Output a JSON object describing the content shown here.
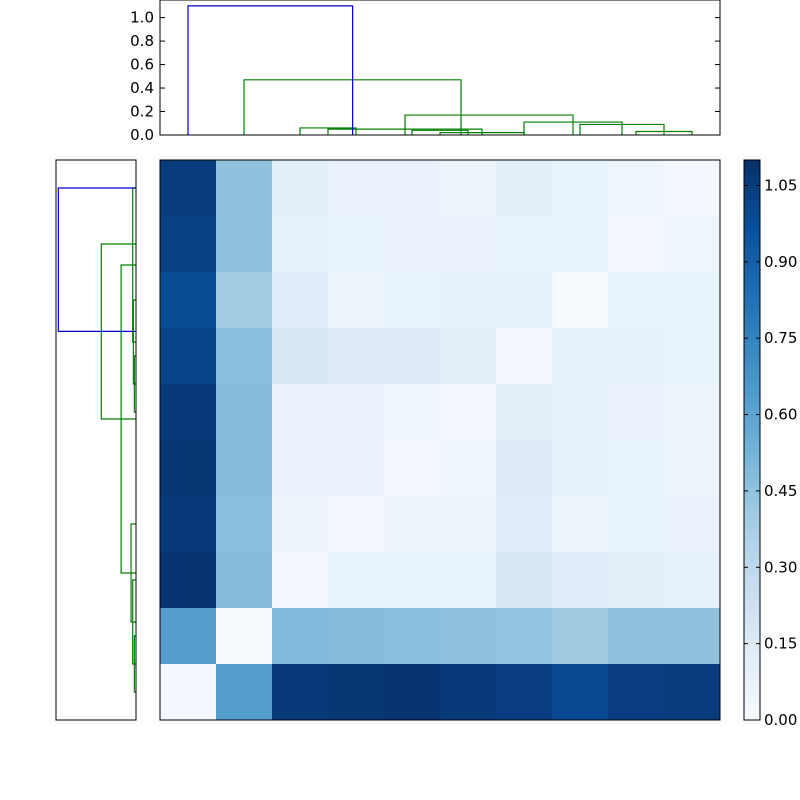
{
  "chart_data": [
    {
      "type": "dendrogram",
      "orientation": "top",
      "ylim": [
        0,
        1.15
      ],
      "yticks": [
        0.0,
        0.2,
        0.4,
        0.6,
        0.8,
        1.0
      ],
      "ytick_labels": [
        "0.0",
        "0.2",
        "0.4",
        "0.6",
        "0.8",
        "1.0"
      ],
      "leaf_positions": [
        5,
        15,
        25,
        35,
        45,
        55,
        65,
        75,
        85,
        95
      ],
      "links": [
        {
          "x1": 25,
          "x2": 35,
          "h": 0.06,
          "color": "#008000"
        },
        {
          "x1": 45,
          "x2": 55,
          "h": 0.04,
          "color": "#008000"
        },
        {
          "x1": 50,
          "x2": 65,
          "h": 0.02,
          "color": "#008000"
        },
        {
          "x1": 30,
          "x2": 57.5,
          "h": 0.05,
          "color": "#008000"
        },
        {
          "x1": 85,
          "x2": 95,
          "h": 0.03,
          "color": "#008000"
        },
        {
          "x1": 75,
          "x2": 90,
          "h": 0.09,
          "color": "#008000"
        },
        {
          "x1": 65,
          "x2": 82.5,
          "h": 0.11,
          "color": "#008000"
        },
        {
          "x1": 43.75,
          "x2": 73.75,
          "h": 0.17,
          "color": "#008000"
        },
        {
          "x1": 15,
          "x2": 53.75,
          "h": 0.47,
          "color": "#008000"
        },
        {
          "x1": 5,
          "x2": 34.4,
          "h": 1.1,
          "color": "#0000cc"
        }
      ]
    },
    {
      "type": "dendrogram",
      "orientation": "left",
      "leaf_positions": [
        5,
        15,
        25,
        35,
        45,
        55,
        65,
        75,
        85,
        95
      ],
      "links": [
        {
          "y1": 95,
          "y2": 85,
          "h": 0.005,
          "color": "#008000"
        },
        {
          "y1": 90,
          "y2": 75,
          "h": 0.01,
          "color": "#008000"
        },
        {
          "y1": 82.5,
          "y2": 65,
          "h": 0.015,
          "color": "#008000"
        },
        {
          "y1": 45,
          "y2": 35,
          "h": 0.005,
          "color": "#008000"
        },
        {
          "y1": 40,
          "y2": 25,
          "h": 0.008,
          "color": "#008000"
        },
        {
          "y1": 32.5,
          "y2": 5,
          "h": 0.01,
          "color": "#008000"
        },
        {
          "y1": 73.75,
          "y2": 18.75,
          "h": 0.045,
          "color": "#008000"
        },
        {
          "y1": 46.25,
          "y2": 15,
          "h": 0.105,
          "color": "#008000"
        },
        {
          "y1": 30.6,
          "y2": 5,
          "h": 0.235,
          "color": "#0000cc"
        }
      ]
    },
    {
      "type": "heatmap",
      "rows": 10,
      "cols": 10,
      "colormap": "Blues",
      "vmin": 0.0,
      "vmax": 1.1,
      "values": [
        [
          1.05,
          0.45,
          0.1,
          0.07,
          0.07,
          0.06,
          0.1,
          0.08,
          0.05,
          0.03
        ],
        [
          1.03,
          0.45,
          0.09,
          0.08,
          0.07,
          0.07,
          0.08,
          0.08,
          0.02,
          0.05
        ],
        [
          0.98,
          0.4,
          0.12,
          0.06,
          0.08,
          0.09,
          0.09,
          0.01,
          0.08,
          0.08
        ],
        [
          1.02,
          0.47,
          0.18,
          0.13,
          0.13,
          0.11,
          0.02,
          0.09,
          0.09,
          0.08
        ],
        [
          1.06,
          0.48,
          0.07,
          0.07,
          0.05,
          0.03,
          0.11,
          0.09,
          0.07,
          0.06
        ],
        [
          1.07,
          0.48,
          0.07,
          0.07,
          0.03,
          0.05,
          0.13,
          0.09,
          0.08,
          0.06
        ],
        [
          1.06,
          0.47,
          0.06,
          0.02,
          0.06,
          0.06,
          0.12,
          0.06,
          0.08,
          0.07
        ],
        [
          1.08,
          0.48,
          0.02,
          0.08,
          0.08,
          0.08,
          0.17,
          0.12,
          0.1,
          0.09
        ],
        [
          0.63,
          0.01,
          0.49,
          0.48,
          0.47,
          0.45,
          0.44,
          0.41,
          0.45,
          0.45
        ],
        [
          0.02,
          0.63,
          1.06,
          1.07,
          1.08,
          1.06,
          1.04,
          0.99,
          1.04,
          1.05
        ]
      ]
    },
    {
      "type": "colorbar",
      "range": [
        0.0,
        1.1
      ],
      "ticks": [
        0.0,
        0.15,
        0.3,
        0.45,
        0.6,
        0.75,
        0.9,
        1.05
      ],
      "tick_labels": [
        "0.00",
        "0.15",
        "0.30",
        "0.45",
        "0.60",
        "0.75",
        "0.90",
        "1.05"
      ]
    }
  ]
}
